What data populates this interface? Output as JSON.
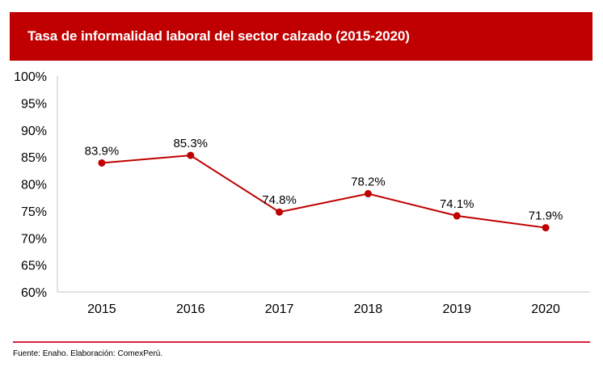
{
  "header": {
    "title": "Tasa de informalidad laboral del sector calzado (2015-2020)"
  },
  "footer": {
    "source": "Fuente: Enaho.  Elaboración:  ComexPerú."
  },
  "colors": {
    "banner": "#c00000",
    "series": "#c00000",
    "separator": "#e0203c"
  },
  "chart_data": {
    "type": "line",
    "title": "Tasa de informalidad laboral del sector calzado (2015-2020)",
    "xlabel": "",
    "ylabel": "",
    "categories": [
      "2015",
      "2016",
      "2017",
      "2018",
      "2019",
      "2020"
    ],
    "series": [
      {
        "name": "Tasa de informalidad laboral",
        "values": [
          83.9,
          85.3,
          74.8,
          78.2,
          74.1,
          71.9
        ],
        "labels": [
          "83.9%",
          "85.3%",
          "74.8%",
          "78.2%",
          "74.1%",
          "71.9%"
        ]
      }
    ],
    "ylim": [
      60,
      100
    ],
    "yticks": [
      60,
      65,
      70,
      75,
      80,
      85,
      90,
      95,
      100
    ],
    "ytick_labels": [
      "60%",
      "65%",
      "70%",
      "75%",
      "80%",
      "85%",
      "90%",
      "95%",
      "100%"
    ],
    "grid": false,
    "legend": "none"
  }
}
